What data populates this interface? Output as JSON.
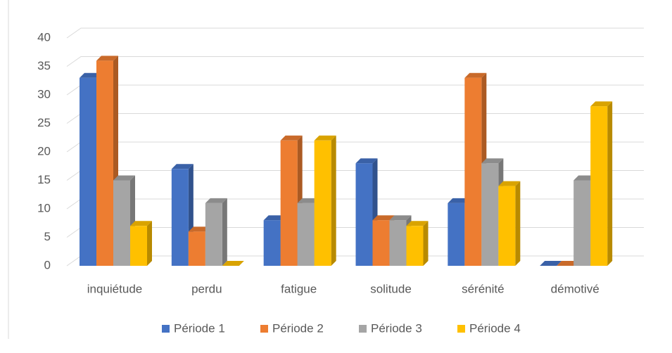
{
  "chart_data": {
    "type": "bar3d",
    "categories": [
      "inquiétude",
      "perdu",
      "fatigue",
      "solitude",
      "sérénité",
      "démotivé"
    ],
    "series": [
      {
        "name": "Période 1",
        "color": "#4472c4",
        "values": [
          33,
          17,
          8,
          18,
          11,
          0
        ]
      },
      {
        "name": "Période 2",
        "color": "#ed7d31",
        "values": [
          36,
          6,
          22,
          8,
          33,
          0
        ]
      },
      {
        "name": "Période 3",
        "color": "#a5a5a5",
        "values": [
          15,
          11,
          11,
          8,
          18,
          15
        ]
      },
      {
        "name": "Période 4",
        "color": "#ffc000",
        "values": [
          7,
          0,
          22,
          7,
          14,
          28
        ]
      }
    ],
    "ylim": [
      0,
      40
    ],
    "yticks": [
      0,
      5,
      10,
      15,
      20,
      25,
      30,
      35,
      40
    ],
    "grid": true,
    "legend": "bottom"
  }
}
